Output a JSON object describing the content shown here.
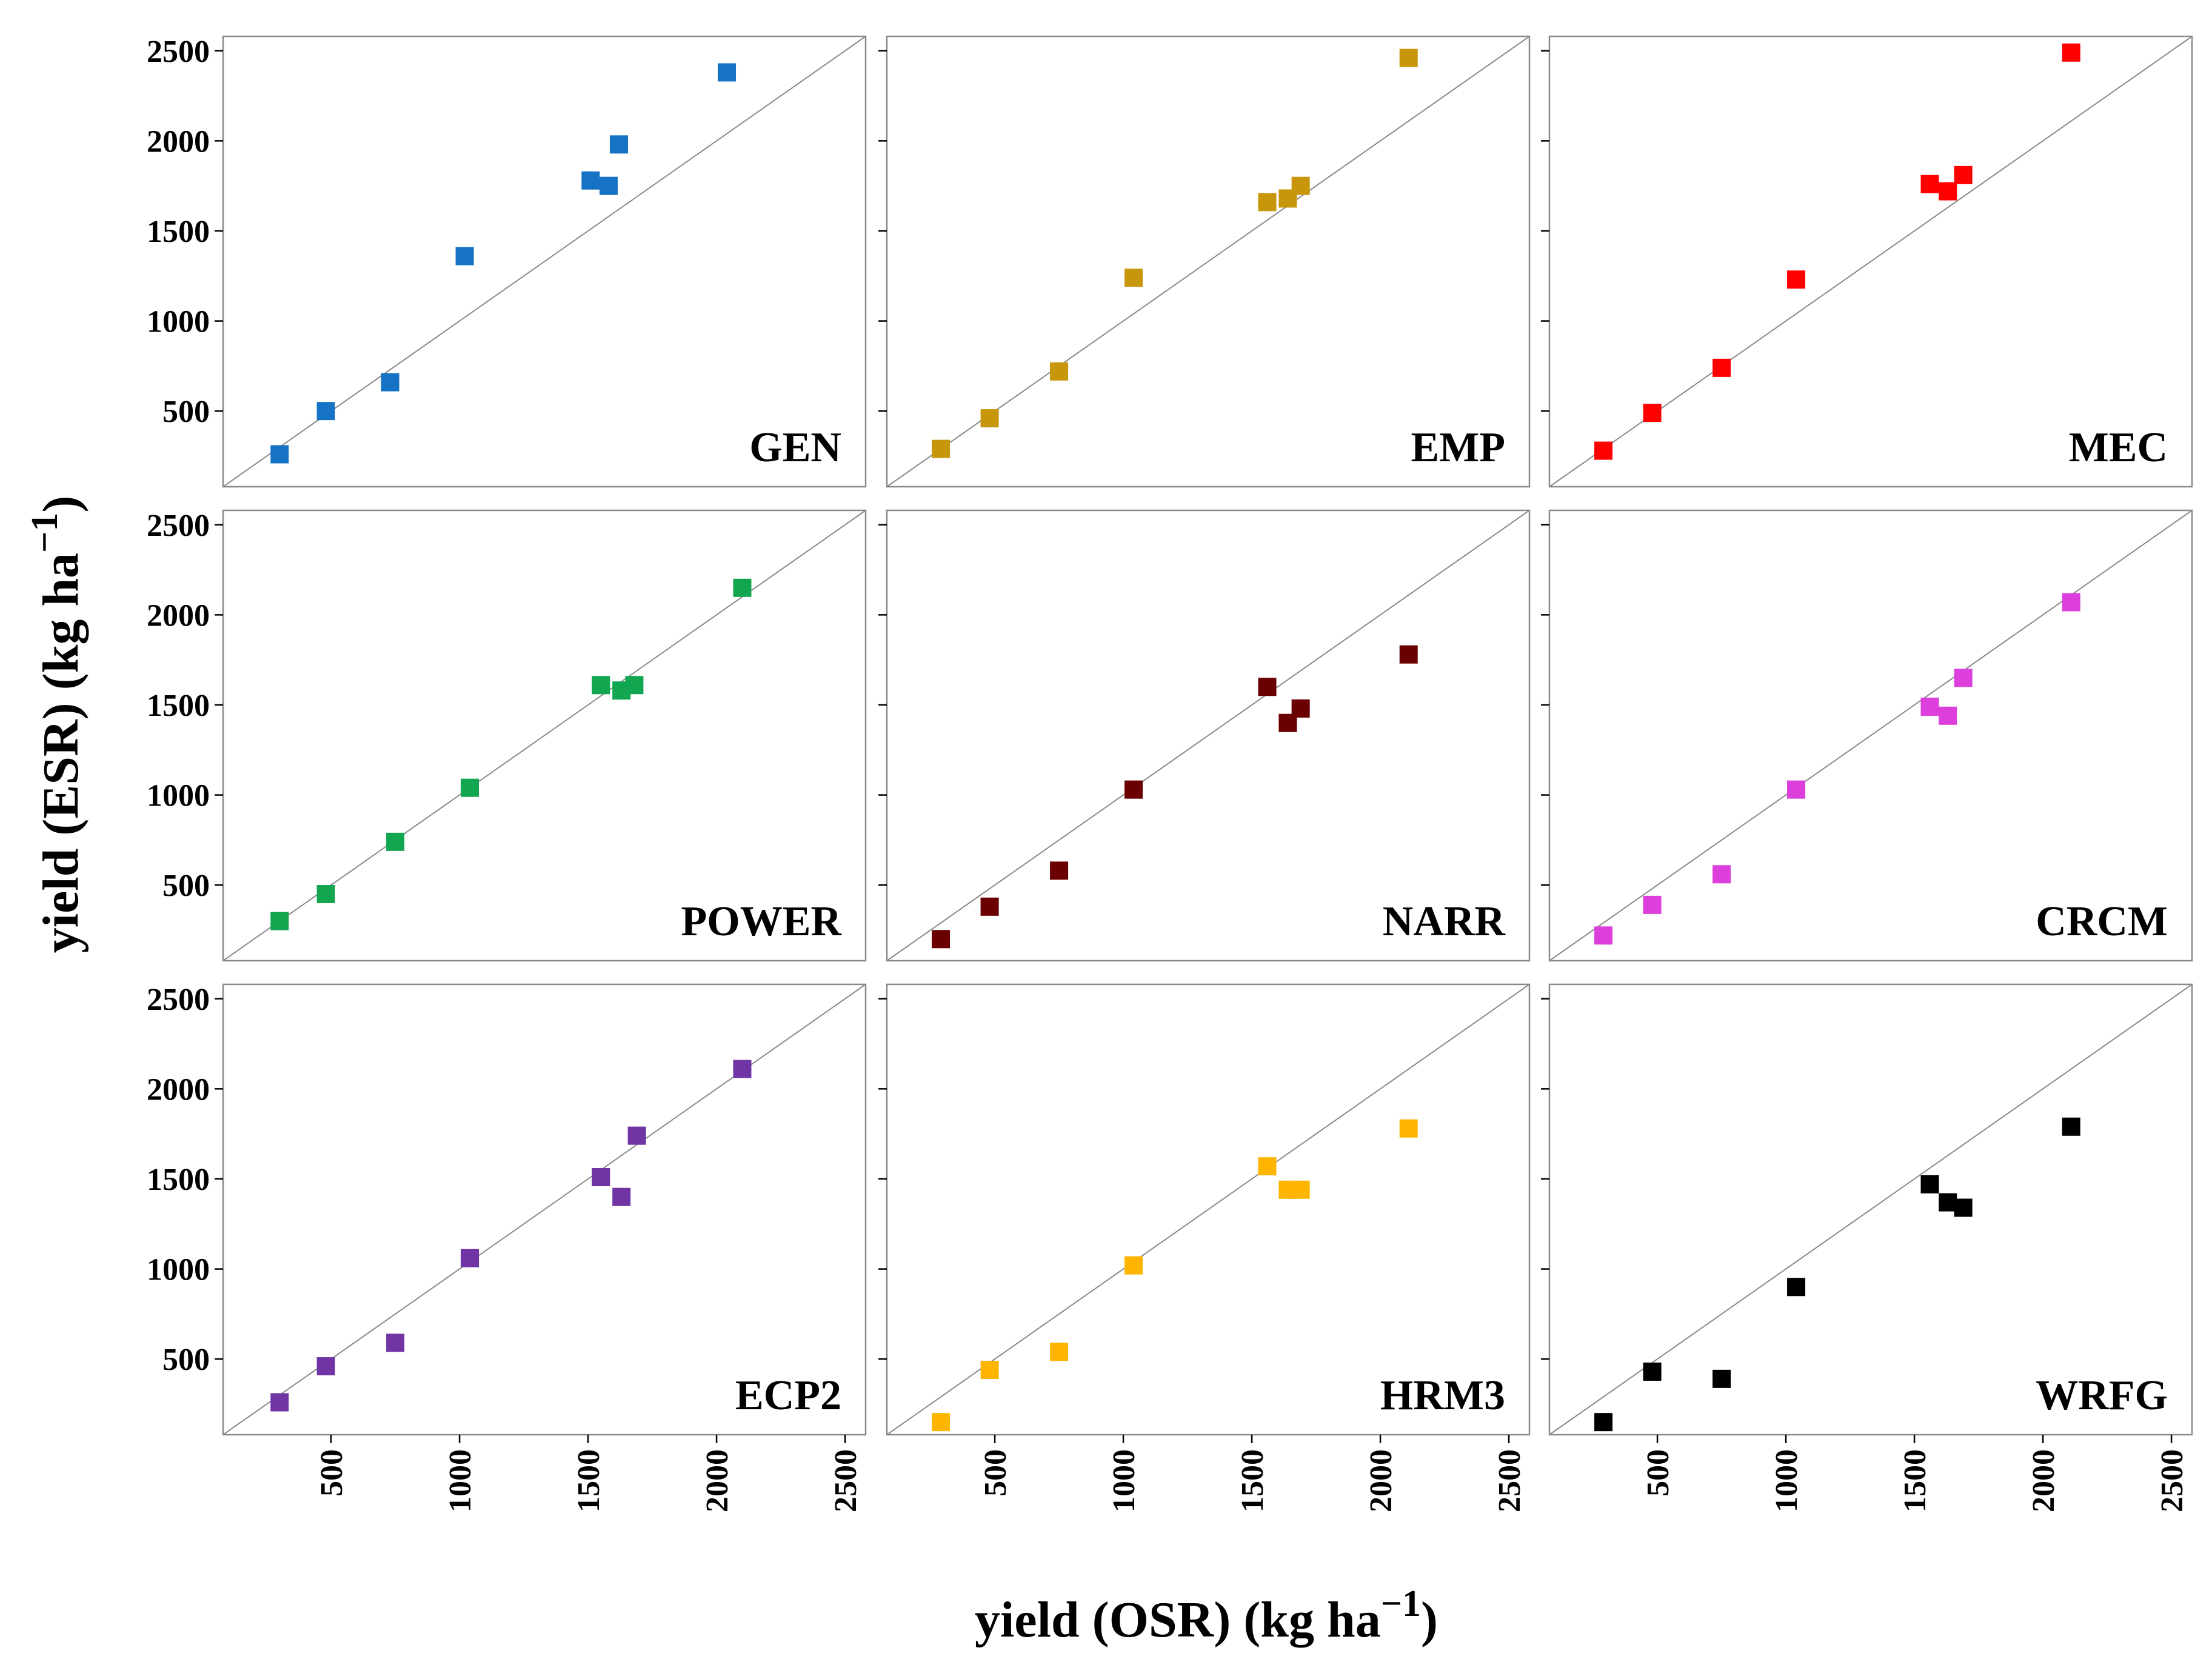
{
  "axes": {
    "xlabel_main": "yield (OSR) (kg ha",
    "ylabel_main": "yield (ESR) (kg ha",
    "unit_superscript": "−1",
    "label_close": ")"
  },
  "chart_data": {
    "type": "scatter",
    "layout": "3x3 small multiples",
    "identity_line": true,
    "xlim": [
      80,
      2580
    ],
    "ylim": [
      80,
      2580
    ],
    "x_ticks": [
      500,
      1000,
      1500,
      2000,
      2500
    ],
    "y_ticks": [
      500,
      1000,
      1500,
      2000,
      2500
    ],
    "x_tick_labels": [
      "500",
      "1000",
      "1500",
      "2000",
      "2500"
    ],
    "y_tick_labels": [
      "500",
      "1000",
      "1500",
      "2000",
      "2500"
    ],
    "panels": [
      {
        "name": "GEN",
        "color": "#1572C4",
        "points": [
          [
            300,
            260
          ],
          [
            480,
            500
          ],
          [
            730,
            660
          ],
          [
            1020,
            1360
          ],
          [
            1510,
            1780
          ],
          [
            1580,
            1750
          ],
          [
            1620,
            1980
          ],
          [
            2040,
            2380
          ]
        ]
      },
      {
        "name": "EMP",
        "color": "#C8960A",
        "points": [
          [
            290,
            290
          ],
          [
            480,
            460
          ],
          [
            750,
            720
          ],
          [
            1040,
            1240
          ],
          [
            1560,
            1660
          ],
          [
            1640,
            1680
          ],
          [
            1690,
            1750
          ],
          [
            2110,
            2460
          ]
        ]
      },
      {
        "name": "MEC",
        "color": "#FF0000",
        "points": [
          [
            290,
            280
          ],
          [
            480,
            490
          ],
          [
            750,
            740
          ],
          [
            1040,
            1230
          ],
          [
            1560,
            1760
          ],
          [
            1630,
            1720
          ],
          [
            1690,
            1810
          ],
          [
            2110,
            2490
          ]
        ]
      },
      {
        "name": "POWER",
        "color": "#12A650",
        "points": [
          [
            300,
            300
          ],
          [
            480,
            450
          ],
          [
            750,
            740
          ],
          [
            1040,
            1040
          ],
          [
            1550,
            1610
          ],
          [
            1630,
            1580
          ],
          [
            1680,
            1610
          ],
          [
            2100,
            2150
          ]
        ]
      },
      {
        "name": "NARR",
        "color": "#6B0000",
        "points": [
          [
            290,
            200
          ],
          [
            480,
            380
          ],
          [
            750,
            580
          ],
          [
            1040,
            1030
          ],
          [
            1560,
            1600
          ],
          [
            1640,
            1400
          ],
          [
            1690,
            1480
          ],
          [
            2110,
            1780
          ]
        ]
      },
      {
        "name": "CRCM",
        "color": "#DD3FDD",
        "points": [
          [
            290,
            220
          ],
          [
            480,
            390
          ],
          [
            750,
            560
          ],
          [
            1040,
            1030
          ],
          [
            1560,
            1490
          ],
          [
            1630,
            1440
          ],
          [
            1690,
            1650
          ],
          [
            2110,
            2070
          ]
        ]
      },
      {
        "name": "ECP2",
        "color": "#7034A4",
        "points": [
          [
            300,
            260
          ],
          [
            480,
            460
          ],
          [
            750,
            590
          ],
          [
            1040,
            1060
          ],
          [
            1550,
            1510
          ],
          [
            1630,
            1400
          ],
          [
            1690,
            1740
          ],
          [
            2100,
            2110
          ]
        ]
      },
      {
        "name": "HRM3",
        "color": "#FDB500",
        "points": [
          [
            290,
            150
          ],
          [
            480,
            440
          ],
          [
            750,
            540
          ],
          [
            1040,
            1020
          ],
          [
            1560,
            1570
          ],
          [
            1640,
            1440
          ],
          [
            1690,
            1440
          ],
          [
            2110,
            1780
          ]
        ]
      },
      {
        "name": "WRFG",
        "color": "#000000",
        "points": [
          [
            290,
            150
          ],
          [
            480,
            430
          ],
          [
            750,
            390
          ],
          [
            1040,
            900
          ],
          [
            1560,
            1470
          ],
          [
            1630,
            1370
          ],
          [
            1690,
            1340
          ],
          [
            2110,
            1790
          ]
        ]
      }
    ]
  }
}
